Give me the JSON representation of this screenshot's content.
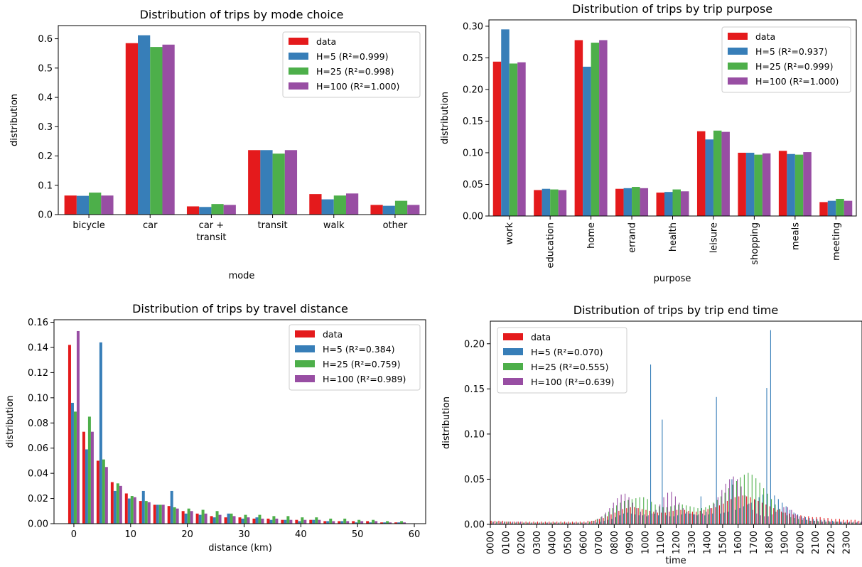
{
  "colors": {
    "data": "#e41a1c",
    "h5": "#377eb8",
    "h25": "#4daf4a",
    "h100": "#984ea3"
  },
  "chart_data": [
    {
      "type": "bar",
      "title": "Distribution of trips by mode choice",
      "xlabel": "mode",
      "ylabel": "distribution",
      "ylim": [
        0,
        0.645
      ],
      "yticks": [
        "0.0",
        "0.1",
        "0.2",
        "0.3",
        "0.4",
        "0.5",
        "0.6"
      ],
      "categories": [
        [
          "bicycle"
        ],
        [
          "car"
        ],
        [
          "car +",
          "transit"
        ],
        [
          "transit"
        ],
        [
          "walk"
        ],
        [
          "other"
        ]
      ],
      "legend_position": "upper right",
      "series": [
        {
          "name": "data",
          "values": [
            0.065,
            0.585,
            0.028,
            0.22,
            0.07,
            0.033
          ]
        },
        {
          "name": "H=5 (R²=0.999)",
          "values": [
            0.064,
            0.612,
            0.026,
            0.22,
            0.052,
            0.03
          ]
        },
        {
          "name": "H=25 (R²=0.998)",
          "values": [
            0.075,
            0.572,
            0.036,
            0.208,
            0.065,
            0.047
          ]
        },
        {
          "name": "H=100 (R²=1.000)",
          "values": [
            0.065,
            0.58,
            0.033,
            0.22,
            0.072,
            0.033
          ]
        }
      ]
    },
    {
      "type": "bar",
      "title": "Distribution of trips by trip purpose",
      "xlabel": "purpose",
      "ylabel": "distribution",
      "ylim": [
        0,
        0.31
      ],
      "yticks": [
        "0.00",
        "0.05",
        "0.10",
        "0.15",
        "0.20",
        "0.25",
        "0.30"
      ],
      "categories": [
        "work",
        "education",
        "home",
        "errand",
        "health",
        "leisure",
        "shopping",
        "meals",
        "meeting"
      ],
      "legend_position": "upper right",
      "series": [
        {
          "name": "data",
          "values": [
            0.244,
            0.041,
            0.278,
            0.043,
            0.037,
            0.134,
            0.1,
            0.103,
            0.022
          ]
        },
        {
          "name": "H=5 (R²=0.937)",
          "values": [
            0.295,
            0.043,
            0.236,
            0.044,
            0.038,
            0.121,
            0.1,
            0.098,
            0.024
          ]
        },
        {
          "name": "H=25 (R²=0.999)",
          "values": [
            0.241,
            0.042,
            0.274,
            0.046,
            0.042,
            0.135,
            0.097,
            0.097,
            0.027
          ]
        },
        {
          "name": "H=100 (R²=1.000)",
          "values": [
            0.243,
            0.041,
            0.278,
            0.044,
            0.039,
            0.133,
            0.099,
            0.101,
            0.024
          ]
        }
      ]
    },
    {
      "type": "bar",
      "title": "Distribution of trips by travel distance",
      "xlabel": "distance (km)",
      "ylabel": "distribution",
      "xlim": [
        -3.5,
        62
      ],
      "xticks": [
        0,
        10,
        20,
        30,
        40,
        50,
        60
      ],
      "ylim": [
        0,
        0.162
      ],
      "yticks": [
        "0.00",
        "0.02",
        "0.04",
        "0.06",
        "0.08",
        "0.10",
        "0.12",
        "0.14",
        "0.16"
      ],
      "bin_width_km": 2.5,
      "x": [
        0,
        2.5,
        5,
        7.5,
        10,
        12.5,
        15,
        17.5,
        20,
        22.5,
        25,
        27.5,
        30,
        32.5,
        35,
        37.5,
        40,
        42.5,
        45,
        47.5,
        50,
        52.5,
        55,
        57.5
      ],
      "legend_position": "upper right",
      "series": [
        {
          "name": "data",
          "values": [
            0.142,
            0.073,
            0.05,
            0.033,
            0.024,
            0.018,
            0.015,
            0.014,
            0.01,
            0.008,
            0.006,
            0.005,
            0.005,
            0.004,
            0.004,
            0.003,
            0.003,
            0.003,
            0.002,
            0.002,
            0.002,
            0.002,
            0.001,
            0.001
          ]
        },
        {
          "name": "H=5 (R²=0.384)",
          "values": [
            0.096,
            0.059,
            0.144,
            0.026,
            0.02,
            0.026,
            0.015,
            0.026,
            0.008,
            0.007,
            0.005,
            0.008,
            0.004,
            0.005,
            0.003,
            0.003,
            0.002,
            0.003,
            0.002,
            0.002,
            0.001,
            0.001,
            0.001,
            0.001
          ]
        },
        {
          "name": "H=25 (R²=0.759)",
          "values": [
            0.089,
            0.085,
            0.051,
            0.032,
            0.022,
            0.018,
            0.015,
            0.013,
            0.012,
            0.011,
            0.01,
            0.008,
            0.007,
            0.007,
            0.006,
            0.006,
            0.005,
            0.005,
            0.004,
            0.004,
            0.003,
            0.003,
            0.002,
            0.002
          ]
        },
        {
          "name": "H=100 (R²=0.989)",
          "values": [
            0.153,
            0.073,
            0.045,
            0.03,
            0.021,
            0.017,
            0.015,
            0.012,
            0.01,
            0.008,
            0.007,
            0.006,
            0.005,
            0.004,
            0.004,
            0.003,
            0.003,
            0.003,
            0.002,
            0.002,
            0.002,
            0.002,
            0.001,
            0.001
          ]
        }
      ]
    },
    {
      "type": "bar",
      "title": "Distribution of trips by trip end time",
      "xlabel": "time",
      "ylabel": "distribution",
      "ylim": [
        0,
        0.225
      ],
      "yticks": [
        "0.00",
        "0.05",
        "0.10",
        "0.15",
        "0.20"
      ],
      "xticks": [
        "0000",
        "0100",
        "0200",
        "0300",
        "0400",
        "0500",
        "0600",
        "0700",
        "0800",
        "0900",
        "1000",
        "1100",
        "1200",
        "1300",
        "1400",
        "1500",
        "1600",
        "1700",
        "1800",
        "1900",
        "2000",
        "2100",
        "2200",
        "2300"
      ],
      "bin_minutes": 15,
      "legend_position": "upper left",
      "series": [
        {
          "name": "data",
          "values": [
            0.004,
            0.004,
            0.004,
            0.004,
            0.003,
            0.003,
            0.003,
            0.003,
            0.003,
            0.003,
            0.003,
            0.003,
            0.003,
            0.003,
            0.003,
            0.003,
            0.003,
            0.003,
            0.003,
            0.003,
            0.003,
            0.003,
            0.003,
            0.003,
            0.003,
            0.004,
            0.004,
            0.005,
            0.006,
            0.007,
            0.009,
            0.011,
            0.013,
            0.015,
            0.017,
            0.018,
            0.019,
            0.019,
            0.018,
            0.017,
            0.016,
            0.015,
            0.014,
            0.013,
            0.013,
            0.013,
            0.014,
            0.015,
            0.016,
            0.016,
            0.016,
            0.015,
            0.014,
            0.014,
            0.015,
            0.016,
            0.017,
            0.018,
            0.019,
            0.021,
            0.023,
            0.026,
            0.028,
            0.03,
            0.031,
            0.032,
            0.031,
            0.03,
            0.028,
            0.026,
            0.024,
            0.022,
            0.02,
            0.018,
            0.016,
            0.014,
            0.013,
            0.012,
            0.011,
            0.01,
            0.01,
            0.009,
            0.009,
            0.008,
            0.008,
            0.008,
            0.007,
            0.007,
            0.006,
            0.006,
            0.006,
            0.005,
            0.005,
            0.005,
            0.005,
            0.004
          ]
        },
        {
          "name": "H=5 (R²=0.070)",
          "values": [
            0.001,
            0.001,
            0.001,
            0.001,
            0.001,
            0.001,
            0.001,
            0.001,
            0.001,
            0.001,
            0.001,
            0.001,
            0.001,
            0.001,
            0.001,
            0.001,
            0.001,
            0.001,
            0.001,
            0.001,
            0.001,
            0.001,
            0.001,
            0.001,
            0.001,
            0.001,
            0.001,
            0.002,
            0.003,
            0.004,
            0.005,
            0.006,
            0.008,
            0.01,
            0.012,
            0.013,
            0.012,
            0.011,
            0.01,
            0.01,
            0.009,
            0.177,
            0.012,
            0.01,
            0.116,
            0.01,
            0.009,
            0.009,
            0.01,
            0.011,
            0.012,
            0.012,
            0.011,
            0.01,
            0.031,
            0.01,
            0.011,
            0.012,
            0.141,
            0.012,
            0.013,
            0.014,
            0.05,
            0.016,
            0.018,
            0.02,
            0.022,
            0.024,
            0.027,
            0.03,
            0.033,
            0.151,
            0.215,
            0.032,
            0.028,
            0.024,
            0.02,
            0.016,
            0.013,
            0.011,
            0.009,
            0.008,
            0.007,
            0.006,
            0.006,
            0.005,
            0.005,
            0.004,
            0.004,
            0.003,
            0.003,
            0.002,
            0.002,
            0.002,
            0.002,
            0.001
          ]
        },
        {
          "name": "H=25 (R²=0.555)",
          "values": [
            0.003,
            0.003,
            0.003,
            0.003,
            0.003,
            0.002,
            0.002,
            0.002,
            0.002,
            0.002,
            0.002,
            0.002,
            0.002,
            0.002,
            0.002,
            0.002,
            0.002,
            0.002,
            0.002,
            0.002,
            0.002,
            0.002,
            0.002,
            0.002,
            0.002,
            0.003,
            0.004,
            0.006,
            0.008,
            0.011,
            0.014,
            0.018,
            0.021,
            0.024,
            0.026,
            0.027,
            0.028,
            0.029,
            0.03,
            0.03,
            0.028,
            0.025,
            0.022,
            0.02,
            0.019,
            0.019,
            0.02,
            0.021,
            0.022,
            0.022,
            0.021,
            0.02,
            0.019,
            0.018,
            0.018,
            0.019,
            0.021,
            0.024,
            0.027,
            0.031,
            0.035,
            0.04,
            0.044,
            0.048,
            0.052,
            0.055,
            0.057,
            0.055,
            0.051,
            0.046,
            0.04,
            0.034,
            0.028,
            0.022,
            0.017,
            0.013,
            0.01,
            0.008,
            0.007,
            0.006,
            0.005,
            0.005,
            0.004,
            0.004,
            0.004,
            0.003,
            0.003,
            0.003,
            0.003,
            0.003,
            0.002,
            0.002,
            0.002,
            0.002,
            0.002,
            0.002
          ]
        },
        {
          "name": "H=100 (R²=0.639)",
          "values": [
            0.003,
            0.003,
            0.003,
            0.003,
            0.003,
            0.003,
            0.003,
            0.003,
            0.002,
            0.002,
            0.002,
            0.002,
            0.002,
            0.002,
            0.002,
            0.002,
            0.002,
            0.002,
            0.002,
            0.002,
            0.002,
            0.002,
            0.002,
            0.002,
            0.002,
            0.003,
            0.004,
            0.006,
            0.009,
            0.013,
            0.018,
            0.024,
            0.029,
            0.033,
            0.034,
            0.03,
            0.024,
            0.018,
            0.014,
            0.011,
            0.01,
            0.012,
            0.016,
            0.022,
            0.03,
            0.035,
            0.036,
            0.031,
            0.024,
            0.018,
            0.014,
            0.012,
            0.011,
            0.011,
            0.012,
            0.014,
            0.018,
            0.023,
            0.03,
            0.038,
            0.045,
            0.05,
            0.053,
            0.05,
            0.042,
            0.032,
            0.023,
            0.016,
            0.012,
            0.01,
            0.009,
            0.009,
            0.011,
            0.014,
            0.017,
            0.019,
            0.019,
            0.016,
            0.012,
            0.009,
            0.007,
            0.005,
            0.004,
            0.004,
            0.003,
            0.003,
            0.003,
            0.003,
            0.003,
            0.003,
            0.003,
            0.003,
            0.003,
            0.003,
            0.003,
            0.003
          ]
        }
      ]
    }
  ]
}
